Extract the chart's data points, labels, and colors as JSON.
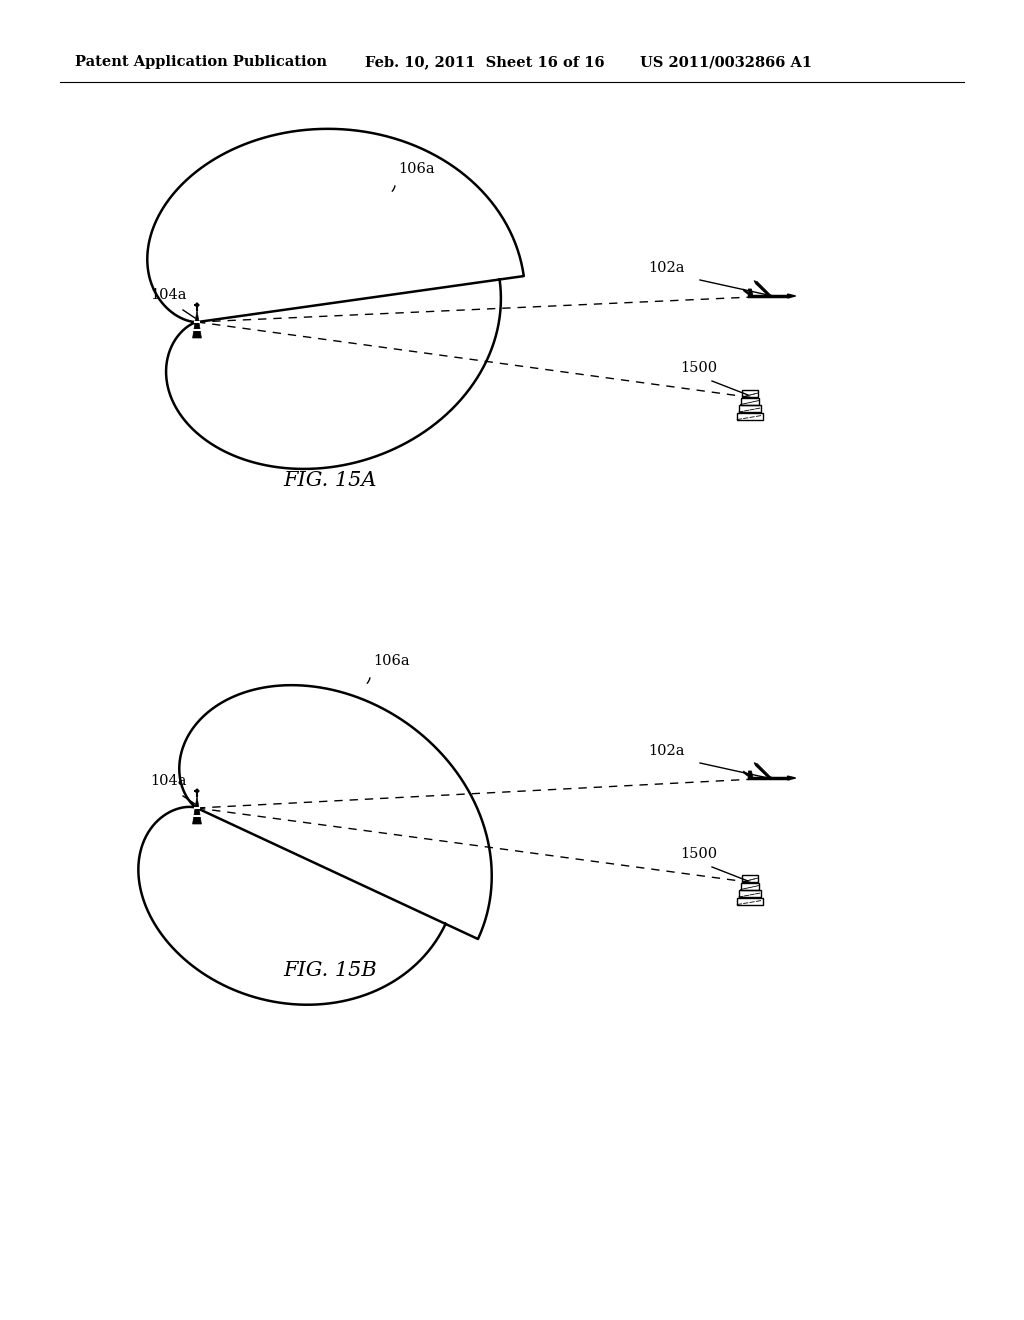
{
  "bg_color": "#ffffff",
  "header_left": "Patent Application Publication",
  "header_mid": "Feb. 10, 2011  Sheet 16 of 16",
  "header_right": "US 2011/0032866 A1",
  "fig_a_label": "FIG. 15A",
  "fig_b_label": "FIG. 15B",
  "label_106a": "106a",
  "label_104a_top": "104a",
  "label_102a_top": "102a",
  "label_1500_top": "1500",
  "label_104a_bot": "104a",
  "label_102a_bot": "102a",
  "label_1500_bot": "1500",
  "label_106a_bot": "106a",
  "line_color": "#000000",
  "text_color": "#000000"
}
